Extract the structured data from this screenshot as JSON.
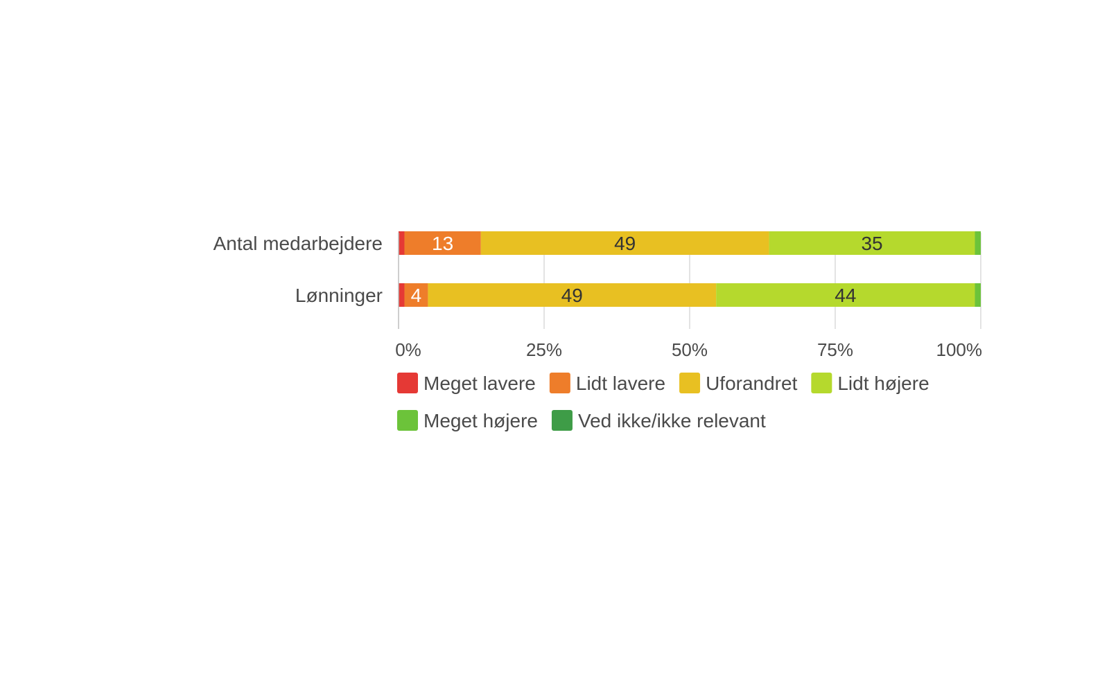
{
  "chart_data": {
    "type": "bar",
    "orientation": "horizontal",
    "stacked": true,
    "percent_scale": true,
    "categories": [
      "Antal medarbejdere",
      "Lønninger"
    ],
    "series": [
      {
        "name": "Meget lavere",
        "color": "#e53935",
        "values": [
          1,
          1
        ],
        "labels": [
          "",
          ""
        ]
      },
      {
        "name": "Lidt lavere",
        "color": "#ee7d2a",
        "values": [
          13,
          4
        ],
        "labels": [
          "13",
          "4"
        ]
      },
      {
        "name": "Uforandret",
        "color": "#e8c022",
        "values": [
          49,
          49
        ],
        "labels": [
          "49",
          "49"
        ]
      },
      {
        "name": "Lidt højere",
        "color": "#b5d92d",
        "values": [
          35,
          44
        ],
        "labels": [
          "35",
          "44"
        ]
      },
      {
        "name": "Meget højere",
        "color": "#6cc33a",
        "values": [
          1,
          1
        ],
        "labels": [
          "",
          ""
        ]
      },
      {
        "name": "Ved ikke/ikke relevant",
        "color": "#3e9c47",
        "values": [
          0,
          0
        ],
        "labels": [
          "",
          ""
        ]
      }
    ],
    "xaxis": {
      "ticks": [
        0,
        25,
        50,
        75,
        100
      ],
      "tick_labels": [
        "0%",
        "25%",
        "50%",
        "75%",
        "100%"
      ],
      "xlim": [
        0,
        100
      ]
    },
    "grid": true,
    "legend_position": "bottom"
  }
}
